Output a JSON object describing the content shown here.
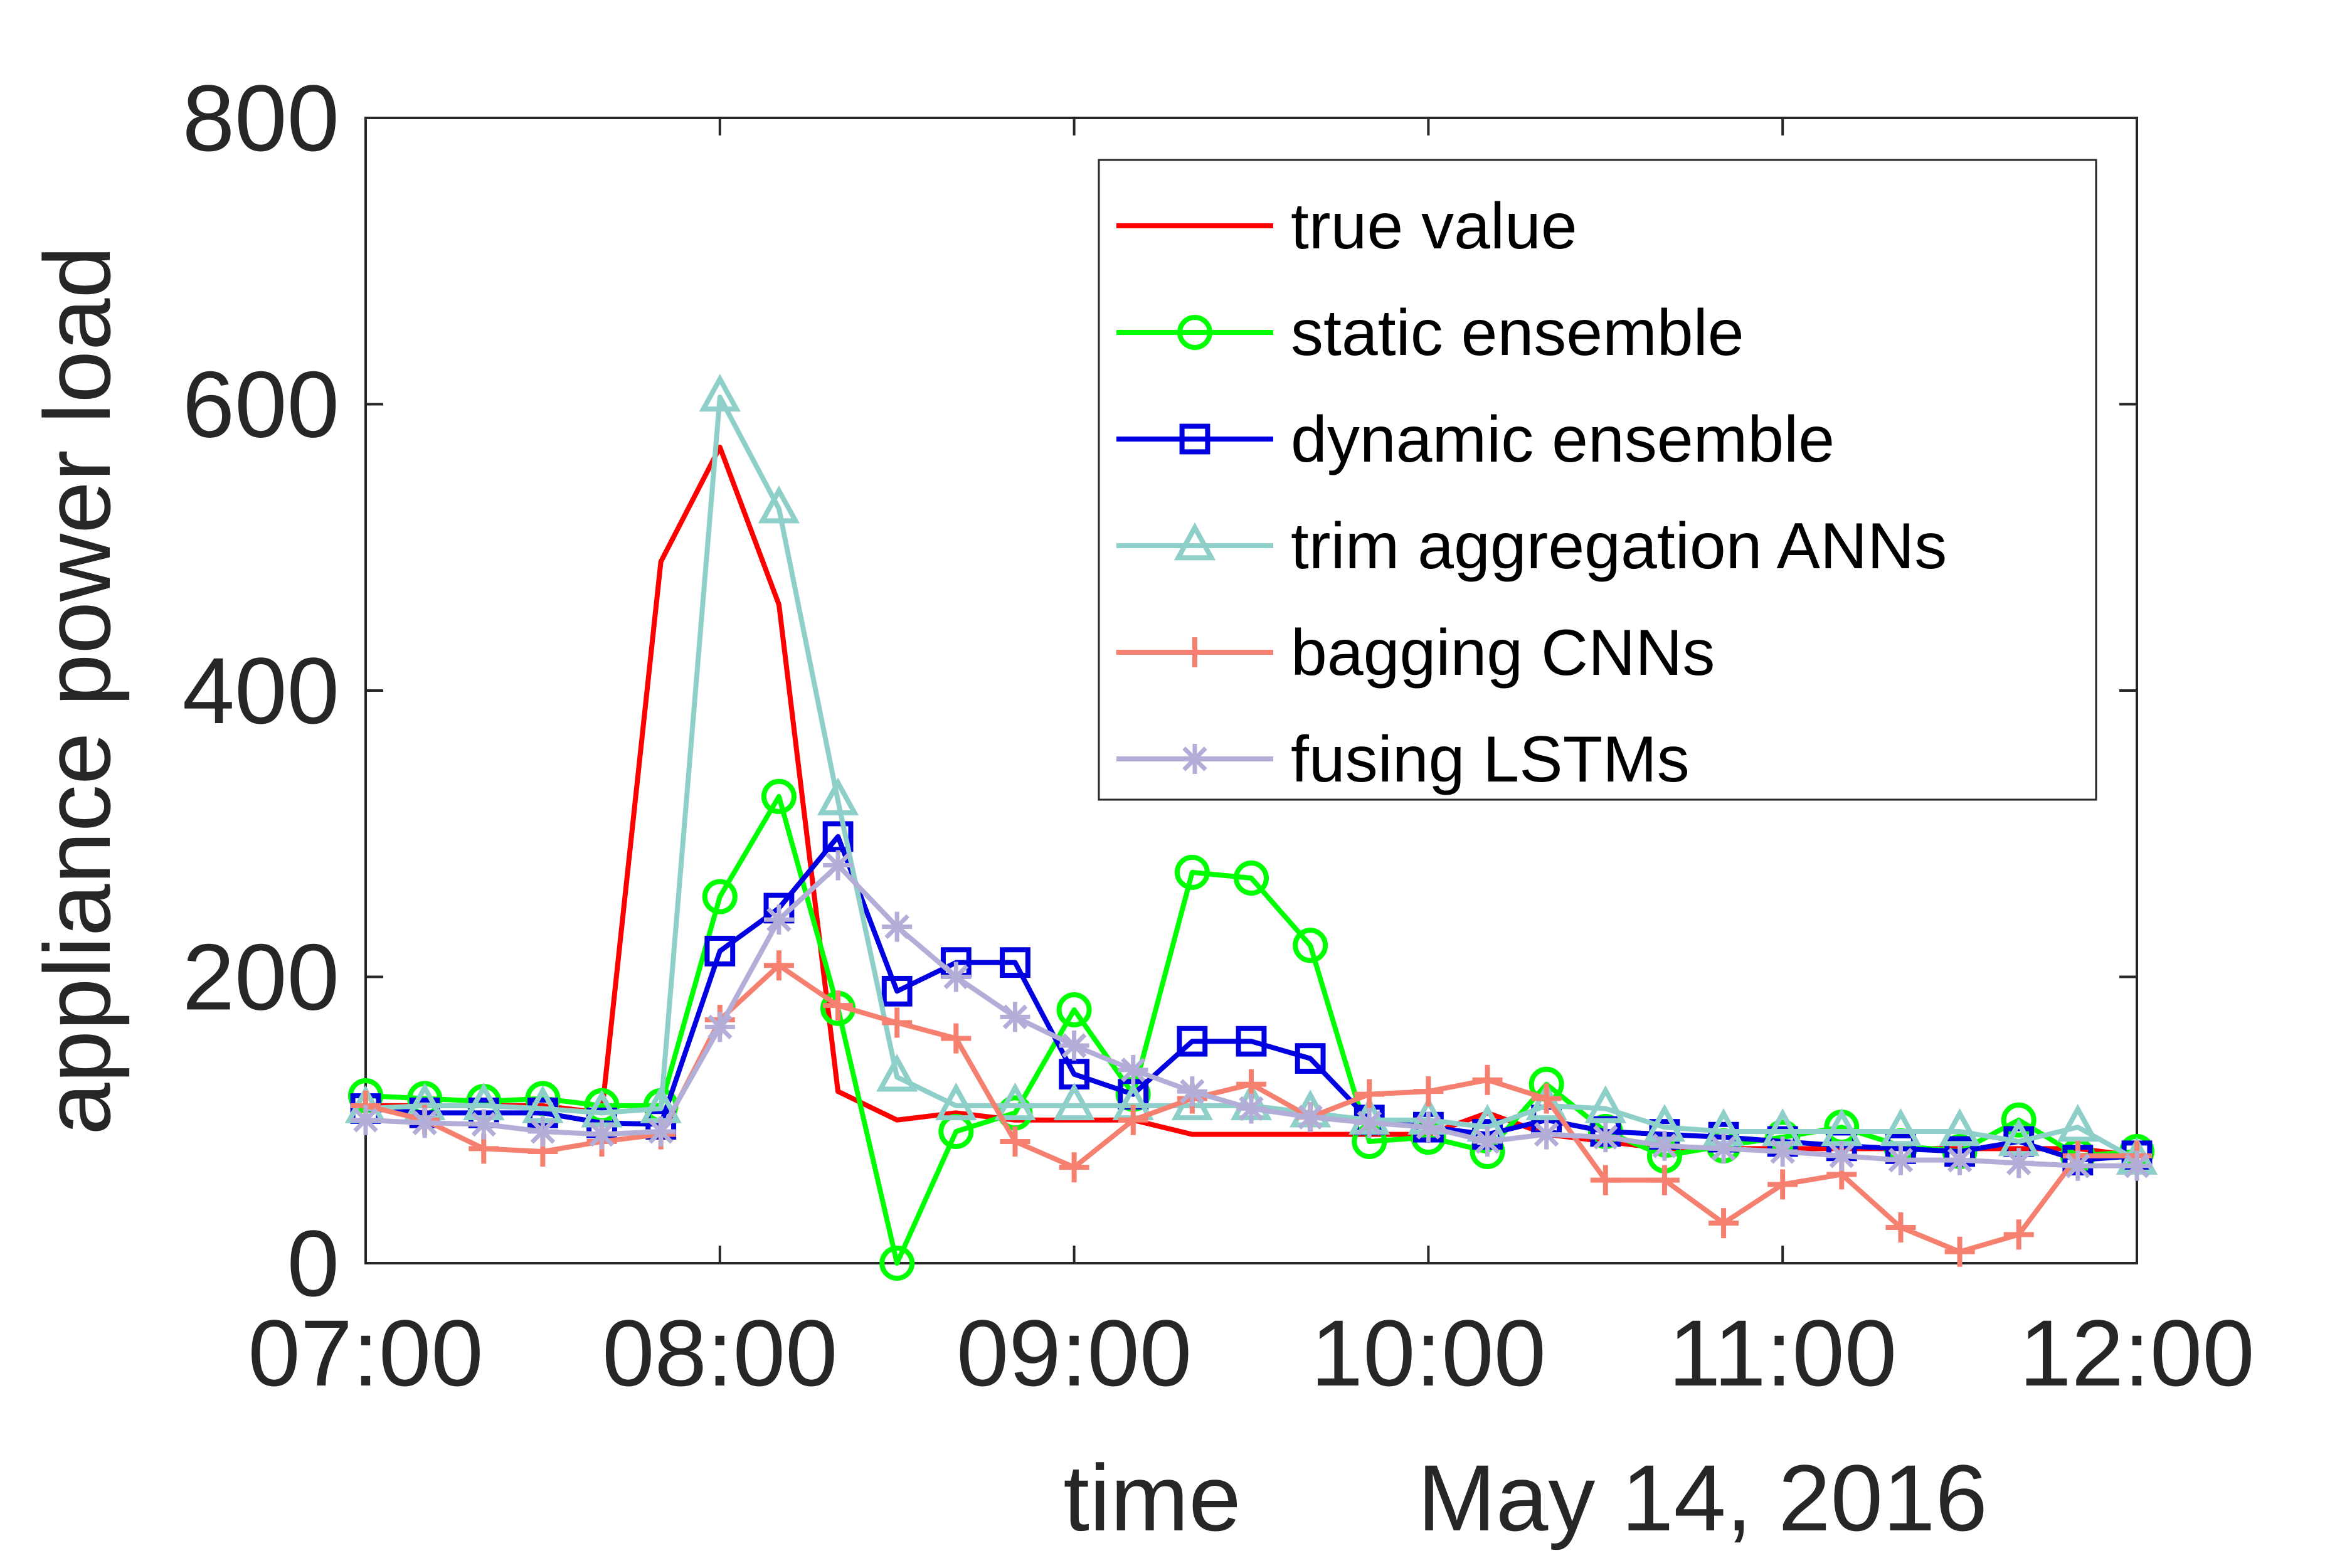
{
  "chart_data": {
    "type": "line",
    "xlabel": "time",
    "xlabel_secondary": "May 14, 2016",
    "ylabel": "appliance power load",
    "xlim": [
      "07:00",
      "12:00"
    ],
    "ylim": [
      0,
      800
    ],
    "x_tick_labels": [
      "07:00",
      "08:00",
      "09:00",
      "10:00",
      "11:00",
      "12:00"
    ],
    "y_tick_labels": [
      "0",
      "200",
      "400",
      "600",
      "800"
    ],
    "y_ticks": [
      0,
      200,
      400,
      600,
      800
    ],
    "grid": false,
    "legend_position": "top-right",
    "x": [
      "07:00",
      "07:10",
      "07:20",
      "07:30",
      "07:40",
      "07:50",
      "08:00",
      "08:10",
      "08:20",
      "08:30",
      "08:40",
      "08:50",
      "09:00",
      "09:10",
      "09:20",
      "09:30",
      "09:40",
      "09:50",
      "10:00",
      "10:10",
      "10:20",
      "10:30",
      "10:40",
      "10:50",
      "11:00",
      "11:10",
      "11:20",
      "11:30",
      "11:40",
      "11:50",
      "12:00"
    ],
    "series": [
      {
        "name": "true value",
        "color": "#ff0000",
        "marker": "none",
        "points": [
          [
            "07:00",
            110
          ],
          [
            "07:10",
            110
          ],
          [
            "07:20",
            110
          ],
          [
            "07:30",
            110
          ],
          [
            "07:40",
            105
          ],
          [
            "07:50",
            490
          ],
          [
            "08:00",
            570
          ],
          [
            "08:10",
            460
          ],
          [
            "08:20",
            120
          ],
          [
            "08:30",
            100
          ],
          [
            "08:40",
            105
          ],
          [
            "08:50",
            100
          ],
          [
            "09:00",
            100
          ],
          [
            "09:10",
            100
          ],
          [
            "09:20",
            90
          ],
          [
            "09:30",
            90
          ],
          [
            "09:40",
            90
          ],
          [
            "09:50",
            90
          ],
          [
            "10:00",
            90
          ],
          [
            "10:10",
            105
          ],
          [
            "10:20",
            90
          ],
          [
            "10:30",
            85
          ],
          [
            "10:40",
            80
          ],
          [
            "10:50",
            80
          ],
          [
            "11:00",
            80
          ],
          [
            "11:10",
            80
          ],
          [
            "11:20",
            80
          ],
          [
            "11:30",
            80
          ],
          [
            "11:40",
            80
          ],
          [
            "11:50",
            80
          ],
          [
            "12:00",
            75
          ]
        ]
      },
      {
        "name": "static ensemble",
        "color": "#00ff00",
        "marker": "circle",
        "points": [
          [
            "07:00",
            117
          ],
          [
            "07:10",
            115
          ],
          [
            "07:20",
            113
          ],
          [
            "07:30",
            115
          ],
          [
            "07:40",
            110
          ],
          [
            "07:50",
            110
          ],
          [
            "08:00",
            256
          ],
          [
            "08:10",
            326
          ],
          [
            "08:20",
            178
          ],
          [
            "08:30",
            0
          ],
          [
            "08:40",
            92
          ],
          [
            "08:50",
            105
          ],
          [
            "09:00",
            177
          ],
          [
            "09:10",
            118
          ],
          [
            "09:20",
            273
          ],
          [
            "09:30",
            269
          ],
          [
            "09:40",
            222
          ],
          [
            "09:50",
            85
          ],
          [
            "10:00",
            88
          ],
          [
            "10:10",
            78
          ],
          [
            "10:20",
            125
          ],
          [
            "10:30",
            92
          ],
          [
            "10:40",
            75
          ],
          [
            "10:50",
            82
          ],
          [
            "11:00",
            88
          ],
          [
            "11:10",
            95
          ],
          [
            "11:20",
            82
          ],
          [
            "11:30",
            78
          ],
          [
            "11:40",
            100
          ],
          [
            "11:50",
            75
          ],
          [
            "12:00",
            78
          ]
        ]
      },
      {
        "name": "dynamic ensemble",
        "color": "#0000e0",
        "marker": "square",
        "points": [
          [
            "07:00",
            108
          ],
          [
            "07:10",
            105
          ],
          [
            "07:20",
            105
          ],
          [
            "07:30",
            105
          ],
          [
            "07:40",
            98
          ],
          [
            "07:50",
            97
          ],
          [
            "08:00",
            218
          ],
          [
            "08:10",
            248
          ],
          [
            "08:20",
            298
          ],
          [
            "08:30",
            190
          ],
          [
            "08:40",
            210
          ],
          [
            "08:50",
            210
          ],
          [
            "09:00",
            132
          ],
          [
            "09:10",
            118
          ],
          [
            "09:20",
            155
          ],
          [
            "09:30",
            155
          ],
          [
            "09:40",
            143
          ],
          [
            "09:50",
            100
          ],
          [
            "10:00",
            95
          ],
          [
            "10:10",
            90
          ],
          [
            "10:20",
            100
          ],
          [
            "10:30",
            92
          ],
          [
            "10:40",
            90
          ],
          [
            "10:50",
            88
          ],
          [
            "11:00",
            85
          ],
          [
            "11:10",
            82
          ],
          [
            "11:20",
            80
          ],
          [
            "11:30",
            78
          ],
          [
            "11:40",
            85
          ],
          [
            "11:50",
            72
          ],
          [
            "12:00",
            75
          ]
        ]
      },
      {
        "name": "trim aggregation ANNs",
        "color": "#8fcfca",
        "marker": "triangle",
        "points": [
          [
            "07:00",
            108
          ],
          [
            "07:10",
            110
          ],
          [
            "07:20",
            110
          ],
          [
            "07:30",
            108
          ],
          [
            "07:40",
            105
          ],
          [
            "07:50",
            108
          ],
          [
            "08:00",
            605
          ],
          [
            "08:10",
            527
          ],
          [
            "08:20",
            323
          ],
          [
            "08:30",
            130
          ],
          [
            "08:40",
            110
          ],
          [
            "08:50",
            110
          ],
          [
            "09:00",
            110
          ],
          [
            "09:10",
            110
          ],
          [
            "09:20",
            110
          ],
          [
            "09:30",
            110
          ],
          [
            "09:40",
            105
          ],
          [
            "09:50",
            100
          ],
          [
            "10:00",
            100
          ],
          [
            "10:10",
            95
          ],
          [
            "10:20",
            110
          ],
          [
            "10:30",
            108
          ],
          [
            "10:40",
            95
          ],
          [
            "10:50",
            92
          ],
          [
            "11:00",
            92
          ],
          [
            "11:10",
            92
          ],
          [
            "11:20",
            92
          ],
          [
            "11:30",
            92
          ],
          [
            "11:40",
            85
          ],
          [
            "11:50",
            95
          ],
          [
            "12:00",
            72
          ]
        ]
      },
      {
        "name": "bagging CNNs",
        "color": "#f5806f",
        "marker": "plus",
        "points": [
          [
            "07:00",
            110
          ],
          [
            "07:10",
            100
          ],
          [
            "07:20",
            80
          ],
          [
            "07:30",
            78
          ],
          [
            "07:40",
            85
          ],
          [
            "07:50",
            90
          ],
          [
            "08:00",
            170
          ],
          [
            "08:10",
            208
          ],
          [
            "08:20",
            180
          ],
          [
            "08:30",
            168
          ],
          [
            "08:40",
            157
          ],
          [
            "08:50",
            85
          ],
          [
            "09:00",
            67
          ],
          [
            "09:10",
            100
          ],
          [
            "09:20",
            115
          ],
          [
            "09:30",
            125
          ],
          [
            "09:40",
            102
          ],
          [
            "09:50",
            118
          ],
          [
            "10:00",
            120
          ],
          [
            "10:10",
            128
          ],
          [
            "10:20",
            115
          ],
          [
            "10:30",
            58
          ],
          [
            "10:40",
            58
          ],
          [
            "10:50",
            28
          ],
          [
            "11:00",
            55
          ],
          [
            "11:10",
            62
          ],
          [
            "11:20",
            25
          ],
          [
            "11:30",
            8
          ],
          [
            "11:40",
            20
          ],
          [
            "11:50",
            75
          ],
          [
            "12:00",
            75
          ]
        ]
      },
      {
        "name": "fusing LSTMs",
        "color": "#b3aed8",
        "marker": "asterisk",
        "points": [
          [
            "07:00",
            100
          ],
          [
            "07:10",
            98
          ],
          [
            "07:20",
            97
          ],
          [
            "07:30",
            92
          ],
          [
            "07:40",
            90
          ],
          [
            "07:50",
            92
          ],
          [
            "08:00",
            165
          ],
          [
            "08:10",
            240
          ],
          [
            "08:20",
            278
          ],
          [
            "08:30",
            235
          ],
          [
            "08:40",
            200
          ],
          [
            "08:50",
            172
          ],
          [
            "09:00",
            152
          ],
          [
            "09:10",
            135
          ],
          [
            "09:20",
            120
          ],
          [
            "09:30",
            108
          ],
          [
            "09:40",
            102
          ],
          [
            "09:50",
            98
          ],
          [
            "10:00",
            95
          ],
          [
            "10:10",
            85
          ],
          [
            "10:20",
            90
          ],
          [
            "10:30",
            88
          ],
          [
            "10:40",
            82
          ],
          [
            "10:50",
            80
          ],
          [
            "11:00",
            78
          ],
          [
            "11:10",
            75
          ],
          [
            "11:20",
            72
          ],
          [
            "11:30",
            72
          ],
          [
            "11:40",
            70
          ],
          [
            "11:50",
            68
          ],
          [
            "12:00",
            68
          ]
        ]
      }
    ]
  }
}
